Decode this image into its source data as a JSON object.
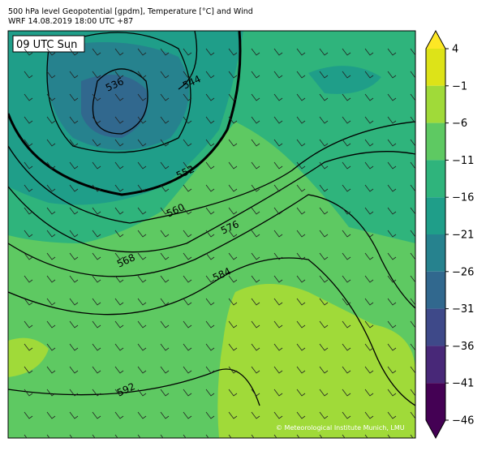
{
  "header": {
    "title": "500 hPa level Geopotential [gpdm], Temperature [°C] and Wind",
    "subtitle": "WRF 14.08.2019 18:00 UTC +87"
  },
  "map": {
    "time_label": "09 UTC Sun",
    "copyright": "© Meteorological Institute Munich, LMU",
    "contour_labels": [
      536,
      544,
      552,
      560,
      568,
      576,
      584,
      592
    ]
  },
  "colorbar": {
    "ticks": [
      4,
      {
        "value": -1,
        "label": "−1"
      },
      {
        "value": -6,
        "label": "−6"
      },
      {
        "value": -11,
        "label": "−11"
      },
      {
        "value": -16,
        "label": "−16"
      },
      {
        "value": -21,
        "label": "−21"
      },
      {
        "value": -26,
        "label": "−26"
      },
      {
        "value": -31,
        "label": "−31"
      },
      {
        "value": -36,
        "label": "−36"
      },
      {
        "value": -41,
        "label": "−41"
      },
      {
        "value": -46,
        "label": "−46"
      }
    ],
    "colors": [
      "#fde725",
      "#dde318",
      "#a0da39",
      "#5ec962",
      "#2fb47c",
      "#1f9e89",
      "#26828e",
      "#31688e",
      "#3e4989",
      "#482878",
      "#440154",
      "#440154"
    ]
  }
}
